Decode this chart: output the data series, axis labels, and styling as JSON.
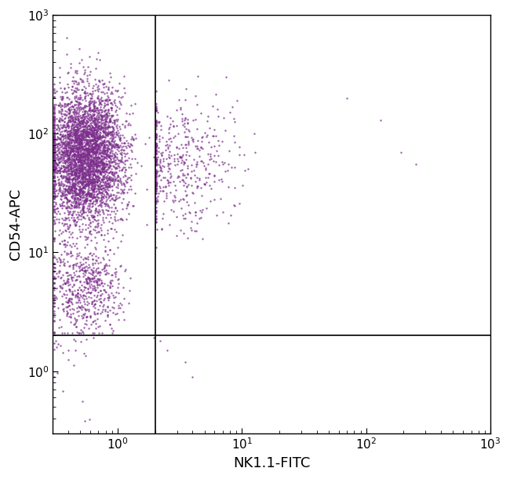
{
  "xlabel": "NK1.1-FITC",
  "ylabel": "CD54-APC",
  "dot_color": "#7B2D8B",
  "dot_alpha": 0.75,
  "dot_size": 3.0,
  "xmin": 0.3,
  "xmax": 1000,
  "ymin": 0.3,
  "ymax": 1000,
  "gate_x": 2.0,
  "gate_y": 2.0,
  "background_color": "#ffffff",
  "tick_label_size": 11,
  "axis_label_size": 13
}
